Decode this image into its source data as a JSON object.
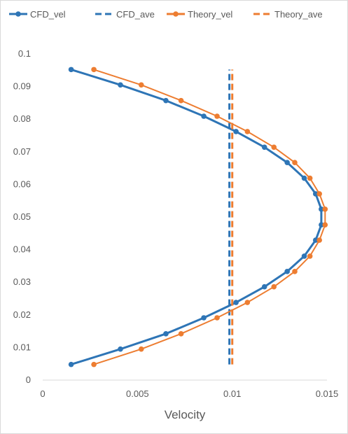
{
  "chart_data": {
    "type": "scatter",
    "xlabel": "Velocity",
    "ylabel": "",
    "xlim": [
      0,
      0.015
    ],
    "ylim": [
      0,
      0.1
    ],
    "x_ticks": [
      "0",
      "0.005",
      "0.01",
      "0.015"
    ],
    "y_ticks": [
      "0",
      "0.01",
      "0.02",
      "0.03",
      "0.04",
      "0.05",
      "0.06",
      "0.07",
      "0.08",
      "0.09",
      "0.1"
    ],
    "x_tick_values": [
      0,
      0.005,
      0.01,
      0.015
    ],
    "y_tick_values": [
      0,
      0.01,
      0.02,
      0.03,
      0.04,
      0.05,
      0.06,
      0.07,
      0.08,
      0.09,
      0.1
    ],
    "grid": false,
    "legend_position": "top",
    "series": [
      {
        "name": "CFD_vel",
        "style": "line-with-markers",
        "color": "#2e75b6",
        "points": [
          [
            0.0015,
            0.0048
          ],
          [
            0.0041,
            0.0095
          ],
          [
            0.0065,
            0.0142
          ],
          [
            0.0085,
            0.0191
          ],
          [
            0.0102,
            0.0238
          ],
          [
            0.0117,
            0.0286
          ],
          [
            0.0129,
            0.0333
          ],
          [
            0.0138,
            0.038
          ],
          [
            0.0144,
            0.0429
          ],
          [
            0.0147,
            0.0476
          ],
          [
            0.0147,
            0.0524
          ],
          [
            0.0144,
            0.0571
          ],
          [
            0.0138,
            0.0619
          ],
          [
            0.0129,
            0.0667
          ],
          [
            0.0117,
            0.0714
          ],
          [
            0.0102,
            0.0762
          ],
          [
            0.0085,
            0.0809
          ],
          [
            0.0065,
            0.0857
          ],
          [
            0.0041,
            0.0905
          ],
          [
            0.0015,
            0.0952
          ]
        ]
      },
      {
        "name": "CFD_ave",
        "style": "dashed",
        "color": "#2e75b6",
        "points": [
          [
            0.00985,
            0.0048
          ],
          [
            0.00985,
            0.0952
          ]
        ]
      },
      {
        "name": "Theory_vel",
        "style": "line-with-markers",
        "color": "#ed7d31",
        "points": [
          [
            0.0027,
            0.0048
          ],
          [
            0.0052,
            0.0095
          ],
          [
            0.0073,
            0.0142
          ],
          [
            0.0092,
            0.0191
          ],
          [
            0.0108,
            0.0238
          ],
          [
            0.0122,
            0.0286
          ],
          [
            0.0133,
            0.0333
          ],
          [
            0.0141,
            0.038
          ],
          [
            0.0146,
            0.0429
          ],
          [
            0.0149,
            0.0476
          ],
          [
            0.0149,
            0.0524
          ],
          [
            0.0146,
            0.0571
          ],
          [
            0.0141,
            0.0619
          ],
          [
            0.0133,
            0.0667
          ],
          [
            0.0122,
            0.0714
          ],
          [
            0.0108,
            0.0762
          ],
          [
            0.0092,
            0.0809
          ],
          [
            0.0073,
            0.0857
          ],
          [
            0.0052,
            0.0905
          ],
          [
            0.0027,
            0.0952
          ]
        ]
      },
      {
        "name": "Theory_ave",
        "style": "dashed",
        "color": "#ed7d31",
        "points": [
          [
            0.01,
            0.0048
          ],
          [
            0.01,
            0.0952
          ]
        ]
      }
    ]
  }
}
